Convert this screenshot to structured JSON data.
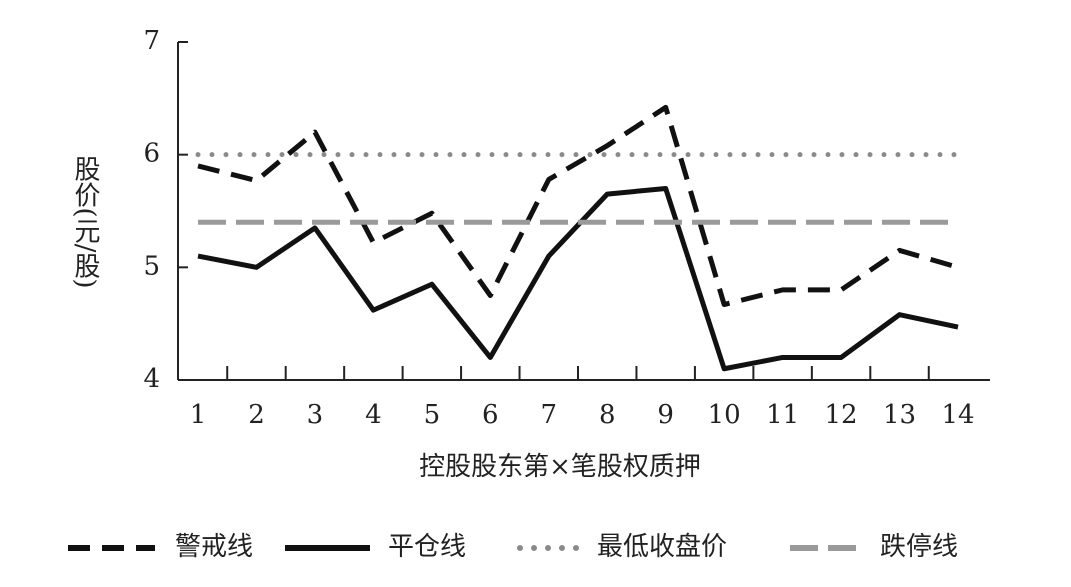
{
  "chart_data": {
    "type": "line",
    "x_label": "控股股东第×笔股权质押",
    "y_label": "股价(元/股)",
    "categories": [
      "1",
      "2",
      "3",
      "4",
      "5",
      "6",
      "7",
      "8",
      "9",
      "10",
      "11",
      "12",
      "13",
      "14"
    ],
    "ylim": [
      4,
      7
    ],
    "yticks": [
      4,
      5,
      6,
      7
    ],
    "series": [
      {
        "name": "警戒线",
        "color": "#111111",
        "style": "dashed",
        "values": [
          5.9,
          5.77,
          6.2,
          5.22,
          5.48,
          4.75,
          5.78,
          6.08,
          6.42,
          4.67,
          4.8,
          4.8,
          5.15,
          5.0
        ]
      },
      {
        "name": "平仓线",
        "color": "#111111",
        "style": "solid",
        "values": [
          5.1,
          5.0,
          5.35,
          4.62,
          4.85,
          4.2,
          5.1,
          5.65,
          5.7,
          4.1,
          4.2,
          4.2,
          4.58,
          4.47
        ]
      },
      {
        "name": "最低收盘价",
        "color": "#8a8a8a",
        "style": "dotted",
        "values": [
          6,
          6,
          6,
          6,
          6,
          6,
          6,
          6,
          6,
          6,
          6,
          6,
          6,
          6
        ]
      },
      {
        "name": "跌停线",
        "color": "#9a9a9a",
        "style": "longdash",
        "values": [
          5.4,
          5.4,
          5.4,
          5.4,
          5.4,
          5.4,
          5.4,
          5.4,
          5.4,
          5.4,
          5.4,
          5.4,
          5.4,
          5.4
        ]
      }
    ]
  }
}
